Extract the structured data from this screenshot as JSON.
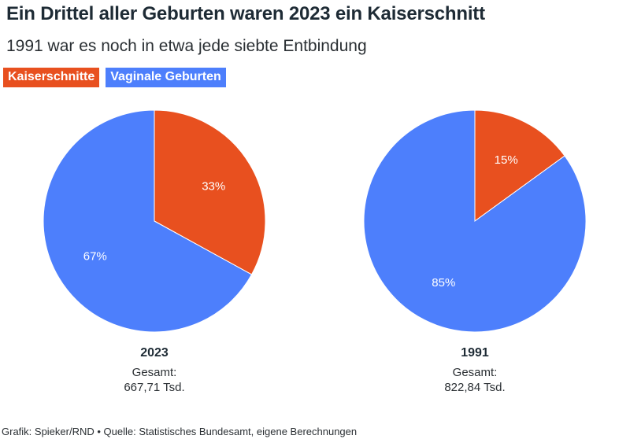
{
  "header": {
    "title": "Ein Drittel aller Geburten waren 2023 ein Kaiserschnitt",
    "subtitle": "1991 war es noch in etwa jede siebte Entbindung"
  },
  "legend": [
    {
      "label": "Kaiserschnitte",
      "color": "#e8501f"
    },
    {
      "label": "Vaginale Geburten",
      "color": "#4d7ffc"
    }
  ],
  "chart_data": [
    {
      "type": "pie",
      "title": "2023",
      "total_label": "Gesamt:",
      "total_value": "667,71 Tsd.",
      "slices": [
        {
          "name": "Kaiserschnitte",
          "value": 33,
          "label": "33%",
          "color": "#e8501f"
        },
        {
          "name": "Vaginale Geburten",
          "value": 67,
          "label": "67%",
          "color": "#4d7ffc"
        }
      ]
    },
    {
      "type": "pie",
      "title": "1991",
      "total_label": "Gesamt:",
      "total_value": "822,84 Tsd.",
      "slices": [
        {
          "name": "Kaiserschnitte",
          "value": 15,
          "label": "15%",
          "color": "#e8501f"
        },
        {
          "name": "Vaginale Geburten",
          "value": 85,
          "label": "85%",
          "color": "#4d7ffc"
        }
      ]
    }
  ],
  "footer": {
    "text": "Grafik: Spieker/RND • Quelle: Statistisches Bundesamt, eigene Berechnungen"
  }
}
